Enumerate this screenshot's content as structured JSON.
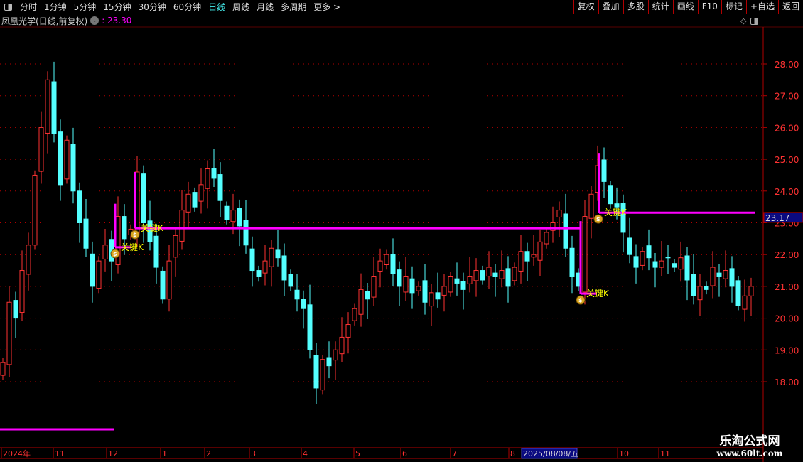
{
  "toolbar": {
    "panel_icon": "panel-toggle-icon",
    "periods": [
      "分时",
      "1分钟",
      "5分钟",
      "15分钟",
      "30分钟",
      "60分钟",
      "日线",
      "周线",
      "月线",
      "多周期",
      "更多 >"
    ],
    "active_period": "日线",
    "right_buttons": [
      "复权",
      "叠加",
      "多股",
      "统计",
      "画线",
      "F10",
      "标记",
      "+自选",
      "返回"
    ]
  },
  "title": {
    "stock_name": "凤凰光学(日线,前复权)",
    "price": ": 23.30"
  },
  "chart_data": {
    "type": "candlestick",
    "price_axis": {
      "ticks": [
        "28.00",
        "27.00",
        "26.00",
        "25.00",
        "24.00",
        "23.00",
        "22.00",
        "21.00",
        "20.00",
        "19.00",
        "18.00"
      ],
      "range": [
        16.6,
        29.8
      ]
    },
    "current_price_label": "23.17",
    "time_axis": {
      "labels": [
        "2024年",
        "11",
        "12",
        "1",
        "2",
        "3",
        "4",
        "5",
        "6",
        "7",
        "8",
        "10",
        "11"
      ],
      "cursor_date": "2025/08/08/五"
    },
    "closes": [
      18.6,
      20.5,
      20.0,
      21.5,
      22.3,
      24.5,
      26.0,
      27.5,
      25.8,
      24.2,
      25.6,
      24.0,
      23.0,
      22.2,
      21.0,
      21.8,
      22.3,
      21.8,
      23.2,
      22.5,
      22.8,
      24.6,
      23.0,
      22.4,
      21.6,
      20.6,
      21.8,
      22.6,
      23.4,
      23.9,
      23.5,
      24.2,
      24.7,
      24.4,
      23.7,
      23.1,
      23.4,
      22.9,
      22.3,
      21.5,
      21.3,
      21.8,
      22.2,
      21.9,
      21.2,
      21.0,
      20.6,
      20.3,
      19.0,
      17.8,
      18.7,
      18.5,
      19.0,
      19.4,
      19.8,
      20.3,
      20.9,
      20.6,
      21.3,
      21.8,
      22.0,
      21.4,
      21.0,
      21.3,
      20.8,
      21.0,
      20.5,
      20.8,
      20.6,
      21.0,
      21.3,
      21.1,
      20.9,
      21.3,
      21.5,
      21.2,
      21.6,
      21.3,
      21.5,
      21.0,
      21.6,
      22.1,
      21.8,
      22.0,
      22.4,
      22.7,
      23.0,
      23.4,
      22.2,
      21.3,
      21.0,
      23.2,
      23.9,
      24.8,
      24.3,
      23.6,
      23.5,
      22.7,
      22.0,
      21.6,
      22.1,
      21.9,
      21.6,
      21.8,
      21.9,
      21.6,
      21.9,
      21.2,
      20.7,
      21.0,
      20.9,
      21.6,
      21.3,
      21.5,
      21.0,
      20.4,
      20.7,
      21.0
    ],
    "key_k_signals": [
      {
        "label": "关键K",
        "price": 22.23,
        "icon": "money-bag-icon"
      },
      {
        "label": "关键K",
        "price": 22.83,
        "icon": "money-bag-icon"
      },
      {
        "label": "关键K",
        "price": 20.77,
        "icon": "money-bag-icon"
      },
      {
        "label": "关键K",
        "price": 23.32,
        "icon": "money-bag-icon"
      }
    ],
    "colors": {
      "up": "#ff3232",
      "down": "#54ffff",
      "signal": "#ff00ff",
      "axis": "#b00000",
      "label": "#ffff00"
    }
  },
  "watermark": {
    "line1": "乐淘公式网",
    "line2": "www.60lt.com"
  }
}
